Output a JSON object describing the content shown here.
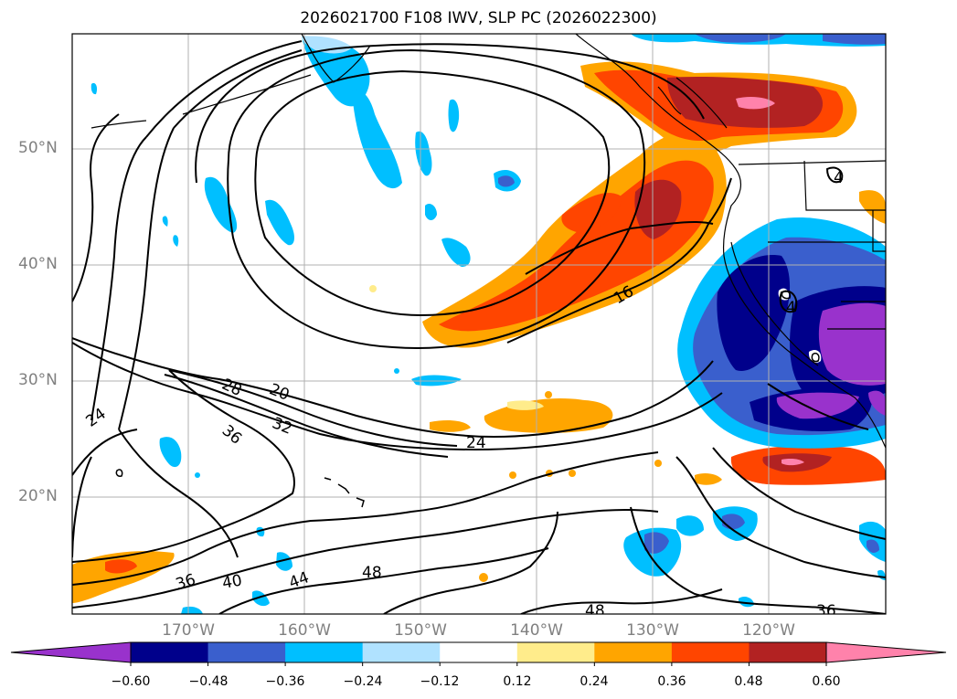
{
  "title": "2026021700 F108 IWV, SLP PC (2026022300)",
  "map": {
    "projection": "cylindrical",
    "lon_range": [
      -180,
      -110
    ],
    "lat_range": [
      10,
      60
    ],
    "lat_ticks": [
      {
        "label": "50°N",
        "value": 50
      },
      {
        "label": "40°N",
        "value": 40
      },
      {
        "label": "30°N",
        "value": 30
      },
      {
        "label": "20°N",
        "value": 20
      }
    ],
    "lon_ticks": [
      {
        "label": "170°W",
        "value": -170
      },
      {
        "label": "160°W",
        "value": -160
      },
      {
        "label": "150°W",
        "value": -150
      },
      {
        "label": "140°W",
        "value": -140
      },
      {
        "label": "130°W",
        "value": -130
      },
      {
        "label": "120°W",
        "value": -120
      }
    ],
    "grid": true,
    "contour_labels": [
      "24",
      "28",
      "20",
      "32",
      "36",
      "24",
      "16",
      "36",
      "40",
      "44",
      "48",
      "48",
      "36",
      "4",
      "4"
    ]
  },
  "colorbar": {
    "extend": "both",
    "bins": [
      {
        "color": "#9932cc"
      },
      {
        "color": "#00008b"
      },
      {
        "color": "#3a5fcd"
      },
      {
        "color": "#00bfff"
      },
      {
        "color": "#b0e2ff"
      },
      {
        "color": "#ffffff"
      },
      {
        "color": "#ffec8b"
      },
      {
        "color": "#ffa500"
      },
      {
        "color": "#ff4500"
      },
      {
        "color": "#b22222"
      },
      {
        "color": "#ff82ab"
      }
    ],
    "tick_labels": [
      "−0.60",
      "−0.48",
      "−0.36",
      "−0.24",
      "−0.12",
      "0.12",
      "0.24",
      "0.36",
      "0.48",
      "0.60"
    ]
  },
  "colors": {
    "coast": "#000000",
    "contour": "#000000",
    "grid": "#b0b0b0",
    "tick_text": "#808080"
  }
}
